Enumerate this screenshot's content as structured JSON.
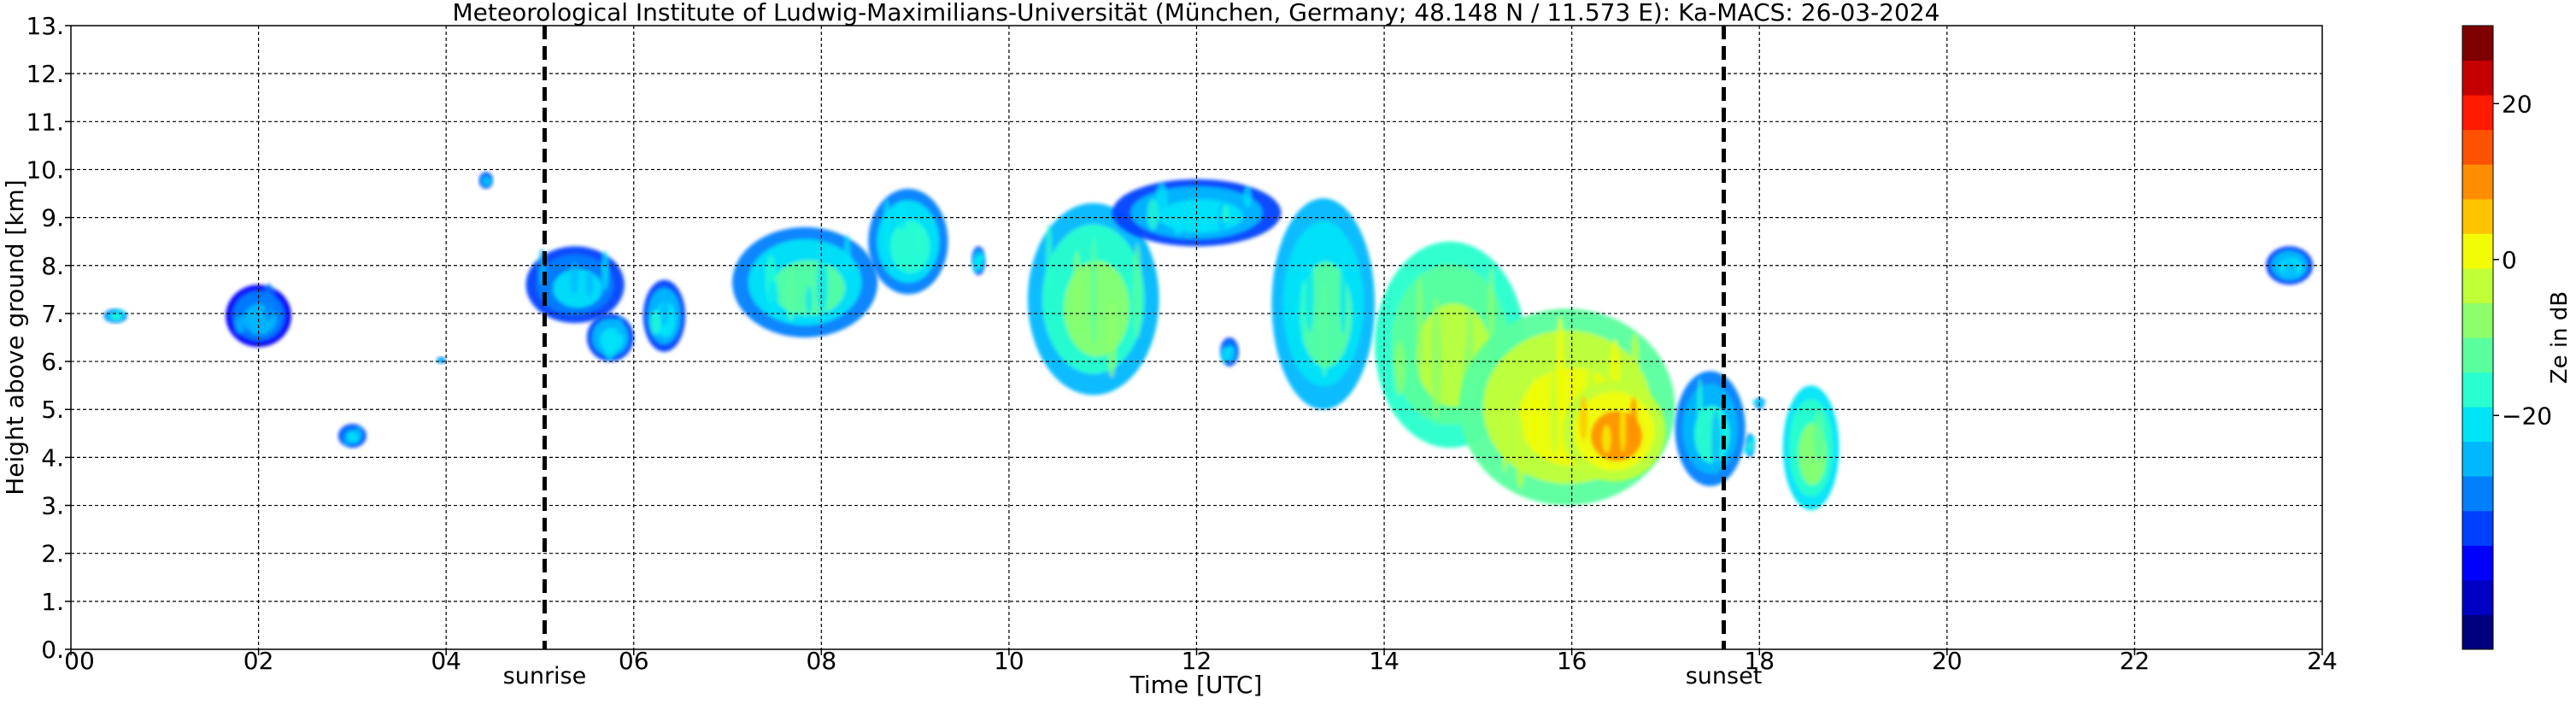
{
  "chart_data": {
    "type": "heatmap",
    "title": "Meteorological Institute of Ludwig-Maximilians-Universität (München, Germany; 48.148 N / 11.573 E):    Ka-MACS: 26-03-2024",
    "xlabel": "Time [UTC]",
    "ylabel": "Height above ground [km]",
    "xlim": [
      0,
      24
    ],
    "ylim": [
      0,
      13
    ],
    "x_ticks": [
      0,
      2,
      4,
      6,
      8,
      10,
      12,
      14,
      16,
      18,
      20,
      22,
      24
    ],
    "x_tick_labels": [
      "00",
      "02",
      "04",
      "06",
      "08",
      "10",
      "12",
      "14",
      "16",
      "18",
      "20",
      "22",
      "24"
    ],
    "y_ticks": [
      0,
      1,
      2,
      3,
      4,
      5,
      6,
      7,
      8,
      9,
      10,
      11,
      12,
      13
    ],
    "y_tick_labels": [
      "0.",
      "1.",
      "2.",
      "3.",
      "4.",
      "5.",
      "6.",
      "7.",
      "8.",
      "9.",
      "10.",
      "11.",
      "12.",
      "13."
    ],
    "grid": true,
    "colorbar": {
      "label": "Ze in dB",
      "range": [
        -50,
        30
      ],
      "ticks": [
        -20,
        0,
        20
      ],
      "tick_labels": [
        "−20",
        "0",
        "20"
      ],
      "colors": [
        "#00007f",
        "#0000c4",
        "#0000ff",
        "#0040ff",
        "#0080ff",
        "#00b8ff",
        "#00e4f8",
        "#29ffce",
        "#5aff9d",
        "#8dff6a",
        "#c1ff37",
        "#f1fc06",
        "#ffc400",
        "#ff8d00",
        "#ff5200",
        "#ff1a00",
        "#c40000",
        "#7f0000"
      ]
    },
    "annotations": [
      {
        "x": 5.05,
        "label": "sunrise",
        "style": "dashed-vertical"
      },
      {
        "x": 17.62,
        "label": "sunset",
        "style": "dashed-vertical"
      }
    ],
    "echo_regions": [
      {
        "t0": 0.35,
        "t1": 0.6,
        "h0": 6.8,
        "h1": 7.1,
        "ze": -22
      },
      {
        "t0": 1.65,
        "t1": 2.35,
        "h0": 6.3,
        "h1": 7.6,
        "ze": -28
      },
      {
        "t0": 2.85,
        "t1": 3.15,
        "h0": 4.2,
        "h1": 4.7,
        "ze": -26
      },
      {
        "t0": 3.9,
        "t1": 4.0,
        "h0": 5.95,
        "h1": 6.1,
        "ze": -25
      },
      {
        "t0": 4.35,
        "t1": 4.5,
        "h0": 9.6,
        "h1": 9.95,
        "ze": -25
      },
      {
        "t0": 4.85,
        "t1": 5.9,
        "h0": 6.8,
        "h1": 8.4,
        "ze": -26
      },
      {
        "t0": 5.5,
        "t1": 6.0,
        "h0": 6.0,
        "h1": 7.0,
        "ze": -24
      },
      {
        "t0": 6.1,
        "t1": 6.55,
        "h0": 6.2,
        "h1": 7.7,
        "ze": -23
      },
      {
        "t0": 7.05,
        "t1": 8.6,
        "h0": 6.5,
        "h1": 8.8,
        "ze": -18
      },
      {
        "t0": 8.5,
        "t1": 9.35,
        "h0": 7.4,
        "h1": 9.6,
        "ze": -20
      },
      {
        "t0": 9.6,
        "t1": 9.75,
        "h0": 7.8,
        "h1": 8.4,
        "ze": -24
      },
      {
        "t0": 10.2,
        "t1": 11.6,
        "h0": 5.3,
        "h1": 9.3,
        "ze": -14
      },
      {
        "t0": 11.1,
        "t1": 12.9,
        "h0": 8.4,
        "h1": 9.8,
        "ze": -23
      },
      {
        "t0": 12.25,
        "t1": 12.45,
        "h0": 5.9,
        "h1": 6.5,
        "ze": -25
      },
      {
        "t0": 12.8,
        "t1": 13.9,
        "h0": 5.0,
        "h1": 9.4,
        "ze": -16
      },
      {
        "t0": 13.9,
        "t1": 15.5,
        "h0": 4.2,
        "h1": 8.5,
        "ze": -8
      },
      {
        "t0": 14.8,
        "t1": 17.1,
        "h0": 3.0,
        "h1": 7.1,
        "ze": -2
      },
      {
        "t0": 15.9,
        "t1": 17.0,
        "h0": 3.5,
        "h1": 5.6,
        "ze": 6
      },
      {
        "t0": 17.1,
        "t1": 17.85,
        "h0": 3.4,
        "h1": 5.8,
        "ze": -22
      },
      {
        "t0": 17.85,
        "t1": 17.95,
        "h0": 4.0,
        "h1": 4.5,
        "ze": -22
      },
      {
        "t0": 17.95,
        "t1": 18.05,
        "h0": 5.0,
        "h1": 5.25,
        "ze": -24
      },
      {
        "t0": 18.25,
        "t1": 18.85,
        "h0": 2.9,
        "h1": 5.5,
        "ze": -12
      },
      {
        "t0": 23.4,
        "t1": 23.9,
        "h0": 7.6,
        "h1": 8.4,
        "ze": -24
      }
    ]
  }
}
